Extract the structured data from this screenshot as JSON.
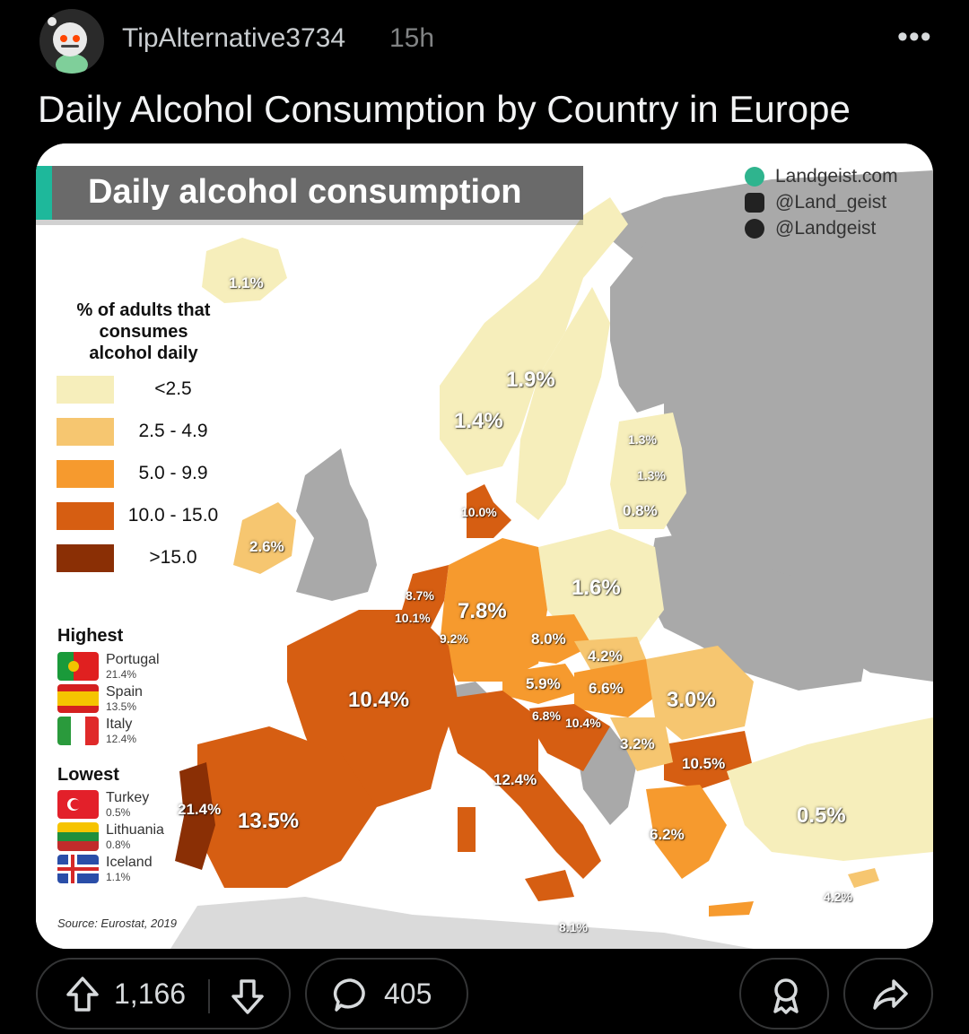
{
  "post": {
    "username": "TipAlternative3734",
    "age": "15h",
    "more": "•••",
    "title": "Daily Alcohol Consumption by Country in Europe"
  },
  "map": {
    "banner_title": "Daily alcohol consumption",
    "brand": [
      "Landgeist.com",
      "@Land_geist",
      "@Landgeist"
    ],
    "legend_title": [
      "% of adults that",
      "consumes",
      "alcohol daily"
    ],
    "legend": [
      {
        "label": "<2.5",
        "color": "#f6eebb"
      },
      {
        "label": "2.5 - 4.9",
        "color": "#f6c670"
      },
      {
        "label": "5.0 - 9.9",
        "color": "#f69a2e"
      },
      {
        "label": "10.0 - 15.0",
        "color": "#d65e12"
      },
      {
        "label": ">15.0",
        "color": "#8a2f05"
      }
    ],
    "highest_title": "Highest",
    "highest": [
      {
        "name": "Portugal",
        "pct": "21.4%"
      },
      {
        "name": "Spain",
        "pct": "13.5%"
      },
      {
        "name": "Italy",
        "pct": "12.4%"
      }
    ],
    "lowest_title": "Lowest",
    "lowest": [
      {
        "name": "Turkey",
        "pct": "0.5%"
      },
      {
        "name": "Lithuania",
        "pct": "0.8%"
      },
      {
        "name": "Iceland",
        "pct": "1.1%"
      }
    ],
    "source": "Source: Eurostat, 2019",
    "labels": {
      "iceland": "1.1%",
      "sweden": "1.9%",
      "norway": "1.4%",
      "estonia": "1.3%",
      "latvia": "1.3%",
      "lithuania": "0.8%",
      "denmark": "10.0%",
      "ireland": "2.6%",
      "poland": "1.6%",
      "netherlands": "8.7%",
      "belgium": "10.1%",
      "germany": "7.8%",
      "luxembourg": "9.2%",
      "czechia": "8.0%",
      "slovakia": "4.2%",
      "austria": "5.9%",
      "hungary": "6.6%",
      "romania": "3.0%",
      "slovenia": "6.8%",
      "croatia": "10.4%",
      "serbia": "3.2%",
      "bulgaria": "10.5%",
      "france": "10.4%",
      "italy": "12.4%",
      "portugal": "21.4%",
      "spain": "13.5%",
      "greece": "6.2%",
      "turkey": "0.5%",
      "cyprus": "4.2%",
      "malta": "8.1%"
    }
  },
  "actions": {
    "upvotes": "1,166",
    "comments": "405"
  }
}
